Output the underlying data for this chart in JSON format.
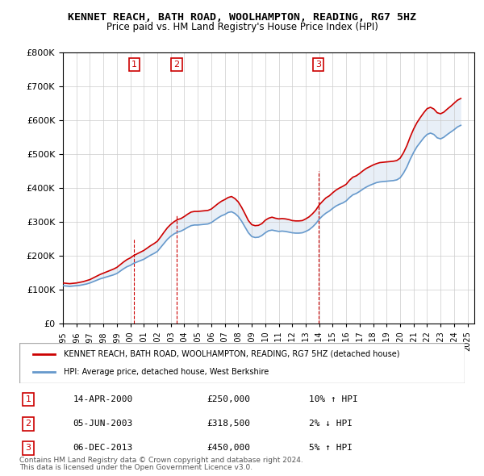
{
  "title": "KENNET REACH, BATH ROAD, WOOLHAMPTON, READING, RG7 5HZ",
  "subtitle": "Price paid vs. HM Land Registry's House Price Index (HPI)",
  "legend_line1": "KENNET REACH, BATH ROAD, WOOLHAMPTON, READING, RG7 5HZ (detached house)",
  "legend_line2": "HPI: Average price, detached house, West Berkshire",
  "footer1": "Contains HM Land Registry data © Crown copyright and database right 2024.",
  "footer2": "This data is licensed under the Open Government Licence v3.0.",
  "sales": [
    {
      "num": 1,
      "date": "14-APR-2000",
      "price": "£250,000",
      "hpi": "10% ↑ HPI",
      "year": 2000.29
    },
    {
      "num": 2,
      "date": "05-JUN-2003",
      "price": "£318,500",
      "hpi": "2% ↓ HPI",
      "year": 2003.43
    },
    {
      "num": 3,
      "date": "06-DEC-2013",
      "price": "£450,000",
      "hpi": "5% ↑ HPI",
      "year": 2013.93
    }
  ],
  "sale_values": [
    250000,
    318500,
    450000
  ],
  "hpi_color": "#6699cc",
  "price_color": "#cc0000",
  "background_color": "#ffffff",
  "grid_color": "#cccccc",
  "ylim": [
    0,
    800000
  ],
  "xlim": [
    1995,
    2025.5
  ],
  "yticks": [
    0,
    100000,
    200000,
    300000,
    400000,
    500000,
    600000,
    700000,
    800000
  ],
  "xticks": [
    1995,
    1996,
    1997,
    1998,
    1999,
    2000,
    2001,
    2002,
    2003,
    2004,
    2005,
    2006,
    2007,
    2008,
    2009,
    2010,
    2011,
    2012,
    2013,
    2014,
    2015,
    2016,
    2017,
    2018,
    2019,
    2020,
    2021,
    2022,
    2023,
    2024,
    2025
  ],
  "hpi_data": {
    "years": [
      1995.0,
      1995.25,
      1995.5,
      1995.75,
      1996.0,
      1996.25,
      1996.5,
      1996.75,
      1997.0,
      1997.25,
      1997.5,
      1997.75,
      1998.0,
      1998.25,
      1998.5,
      1998.75,
      1999.0,
      1999.25,
      1999.5,
      1999.75,
      2000.0,
      2000.25,
      2000.5,
      2000.75,
      2001.0,
      2001.25,
      2001.5,
      2001.75,
      2002.0,
      2002.25,
      2002.5,
      2002.75,
      2003.0,
      2003.25,
      2003.5,
      2003.75,
      2004.0,
      2004.25,
      2004.5,
      2004.75,
      2005.0,
      2005.25,
      2005.5,
      2005.75,
      2006.0,
      2006.25,
      2006.5,
      2006.75,
      2007.0,
      2007.25,
      2007.5,
      2007.75,
      2008.0,
      2008.25,
      2008.5,
      2008.75,
      2009.0,
      2009.25,
      2009.5,
      2009.75,
      2010.0,
      2010.25,
      2010.5,
      2010.75,
      2011.0,
      2011.25,
      2011.5,
      2011.75,
      2012.0,
      2012.25,
      2012.5,
      2012.75,
      2013.0,
      2013.25,
      2013.5,
      2013.75,
      2014.0,
      2014.25,
      2014.5,
      2014.75,
      2015.0,
      2015.25,
      2015.5,
      2015.75,
      2016.0,
      2016.25,
      2016.5,
      2016.75,
      2017.0,
      2017.25,
      2017.5,
      2017.75,
      2018.0,
      2018.25,
      2018.5,
      2018.75,
      2019.0,
      2019.25,
      2019.5,
      2019.75,
      2020.0,
      2020.25,
      2020.5,
      2020.75,
      2021.0,
      2021.25,
      2021.5,
      2021.75,
      2022.0,
      2022.25,
      2022.5,
      2022.75,
      2023.0,
      2023.25,
      2023.5,
      2023.75,
      2024.0,
      2024.25,
      2024.5
    ],
    "values": [
      112000,
      111000,
      110000,
      111000,
      112000,
      113000,
      115000,
      117000,
      120000,
      124000,
      128000,
      132000,
      135000,
      138000,
      141000,
      144000,
      148000,
      155000,
      162000,
      168000,
      172000,
      178000,
      182000,
      186000,
      190000,
      196000,
      202000,
      207000,
      213000,
      225000,
      237000,
      249000,
      258000,
      265000,
      270000,
      273000,
      278000,
      284000,
      289000,
      291000,
      291000,
      292000,
      293000,
      294000,
      298000,
      305000,
      312000,
      318000,
      322000,
      328000,
      330000,
      325000,
      316000,
      302000,
      285000,
      268000,
      257000,
      254000,
      255000,
      260000,
      268000,
      274000,
      276000,
      274000,
      272000,
      273000,
      272000,
      270000,
      268000,
      267000,
      267000,
      268000,
      272000,
      277000,
      285000,
      295000,
      308000,
      318000,
      326000,
      332000,
      340000,
      347000,
      352000,
      356000,
      362000,
      372000,
      380000,
      384000,
      390000,
      397000,
      403000,
      408000,
      412000,
      416000,
      418000,
      419000,
      420000,
      421000,
      422000,
      424000,
      430000,
      444000,
      462000,
      485000,
      505000,
      522000,
      535000,
      548000,
      558000,
      562000,
      558000,
      548000,
      545000,
      550000,
      558000,
      565000,
      572000,
      580000,
      585000
    ]
  },
  "price_data": {
    "years": [
      1995.0,
      1995.25,
      1995.5,
      1995.75,
      1996.0,
      1996.25,
      1996.5,
      1996.75,
      1997.0,
      1997.25,
      1997.5,
      1997.75,
      1998.0,
      1998.25,
      1998.5,
      1998.75,
      1999.0,
      1999.25,
      1999.5,
      1999.75,
      2000.0,
      2000.25,
      2000.5,
      2000.75,
      2001.0,
      2001.25,
      2001.5,
      2001.75,
      2002.0,
      2002.25,
      2002.5,
      2002.75,
      2003.0,
      2003.25,
      2003.5,
      2003.75,
      2004.0,
      2004.25,
      2004.5,
      2004.75,
      2005.0,
      2005.25,
      2005.5,
      2005.75,
      2006.0,
      2006.25,
      2006.5,
      2006.75,
      2007.0,
      2007.25,
      2007.5,
      2007.75,
      2008.0,
      2008.25,
      2008.5,
      2008.75,
      2009.0,
      2009.25,
      2009.5,
      2009.75,
      2010.0,
      2010.25,
      2010.5,
      2010.75,
      2011.0,
      2011.25,
      2011.5,
      2011.75,
      2012.0,
      2012.25,
      2012.5,
      2012.75,
      2013.0,
      2013.25,
      2013.5,
      2013.75,
      2014.0,
      2014.25,
      2014.5,
      2014.75,
      2015.0,
      2015.25,
      2015.5,
      2015.75,
      2016.0,
      2016.25,
      2016.5,
      2016.75,
      2017.0,
      2017.25,
      2017.5,
      2017.75,
      2018.0,
      2018.25,
      2018.5,
      2018.75,
      2019.0,
      2019.25,
      2019.5,
      2019.75,
      2020.0,
      2020.25,
      2020.5,
      2020.75,
      2021.0,
      2021.25,
      2021.5,
      2021.75,
      2022.0,
      2022.25,
      2022.5,
      2022.75,
      2023.0,
      2023.25,
      2023.5,
      2023.75,
      2024.0,
      2024.25,
      2024.5
    ],
    "values": [
      120000,
      119000,
      118000,
      119000,
      120000,
      122000,
      124000,
      127000,
      130000,
      135000,
      140000,
      145000,
      149000,
      153000,
      157000,
      161000,
      166000,
      174000,
      182000,
      189000,
      194000,
      201000,
      206000,
      211000,
      216000,
      223000,
      230000,
      236000,
      243000,
      256000,
      270000,
      283000,
      293000,
      301000,
      307000,
      310000,
      316000,
      323000,
      329000,
      331000,
      331000,
      332000,
      333000,
      334000,
      338000,
      346000,
      354000,
      361000,
      366000,
      372000,
      375000,
      369000,
      359000,
      343000,
      324000,
      304000,
      292000,
      289000,
      290000,
      295000,
      305000,
      311000,
      314000,
      311000,
      309000,
      310000,
      309000,
      307000,
      304000,
      303000,
      303000,
      304000,
      309000,
      315000,
      324000,
      335000,
      350000,
      361000,
      371000,
      377000,
      386000,
      394000,
      400000,
      405000,
      411000,
      423000,
      432000,
      436000,
      443000,
      451000,
      458000,
      463000,
      468000,
      472000,
      475000,
      476000,
      477000,
      478000,
      479000,
      481000,
      488000,
      504000,
      525000,
      551000,
      574000,
      593000,
      608000,
      622000,
      634000,
      638000,
      633000,
      622000,
      619000,
      624000,
      633000,
      641000,
      650000,
      659000,
      664000
    ]
  }
}
